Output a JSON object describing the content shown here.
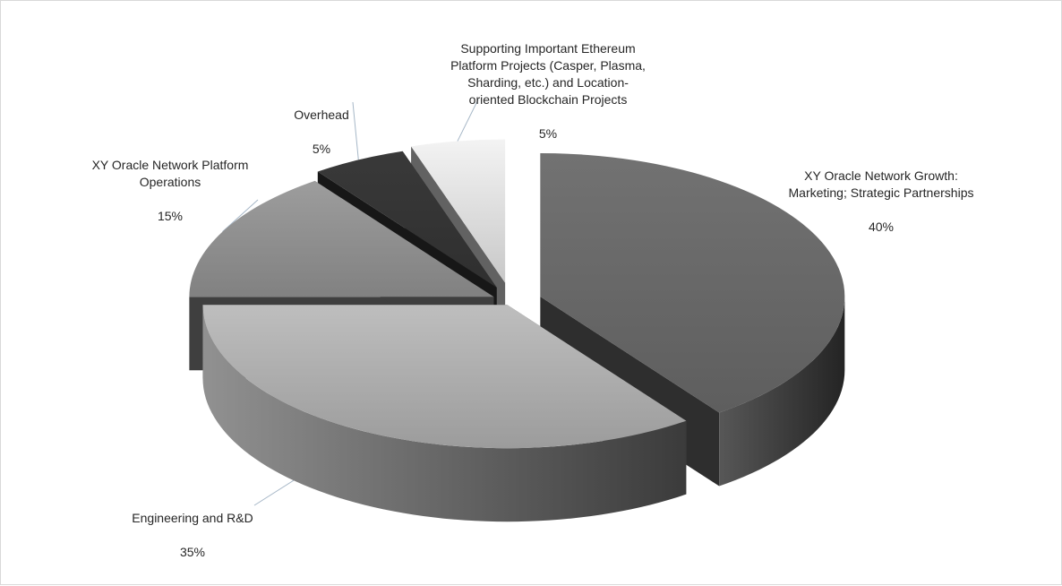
{
  "chart_data": {
    "type": "pie",
    "title": "",
    "style": "3d-exploded",
    "slices": [
      {
        "label": "XY Oracle Network Growth:\nMarketing; Strategic Partnerships",
        "value": 40,
        "display": "40%",
        "color": "#666666"
      },
      {
        "label": "Engineering and R&D",
        "value": 35,
        "display": "35%",
        "color": "#aaaaaa"
      },
      {
        "label": "XY Oracle Network Platform\nOperations",
        "value": 15,
        "display": "15%",
        "color": "#8c8c8c"
      },
      {
        "label": "Overhead",
        "value": 5,
        "display": "5%",
        "color": "#333333"
      },
      {
        "label": "Supporting Important Ethereum\nPlatform Projects (Casper, Plasma,\nSharding, etc.) and Location-\noriented Blockchain Projects",
        "value": 5,
        "display": "5%",
        "color": "#d9d9d9"
      }
    ]
  }
}
